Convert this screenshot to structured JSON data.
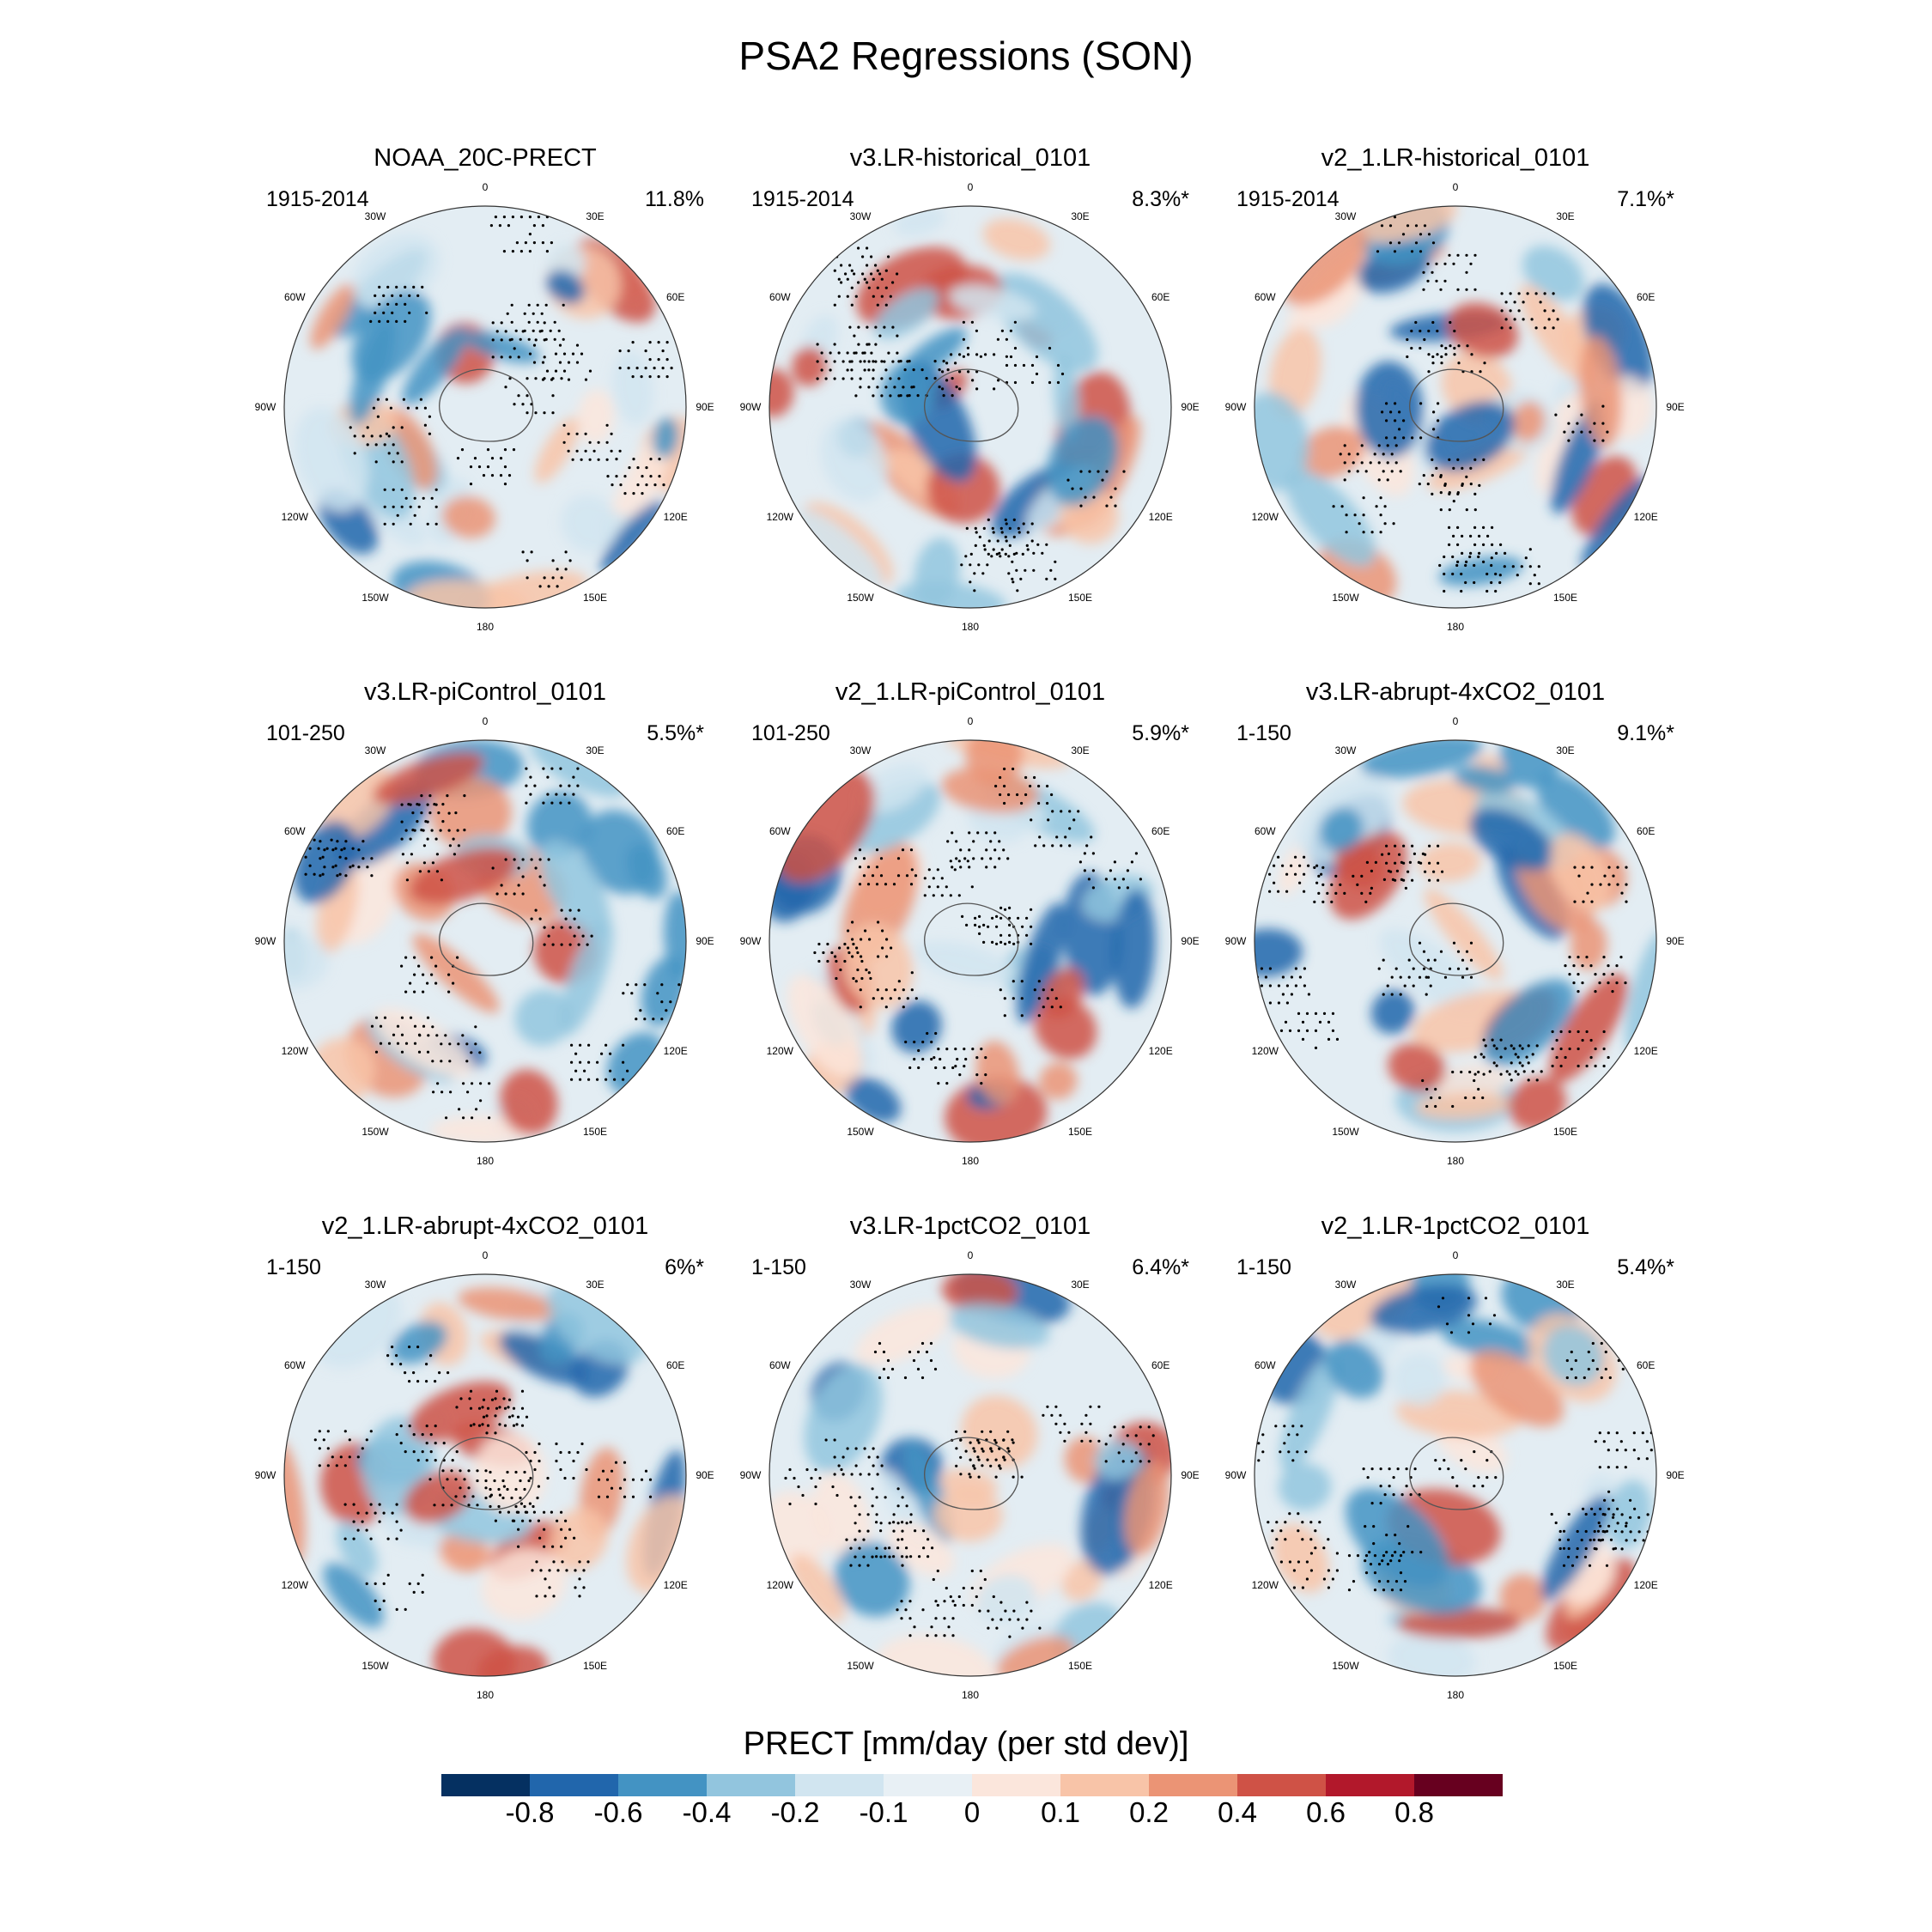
{
  "title": "PSA2 Regressions (SON)",
  "chart_data": {
    "type": "heatmap",
    "projection": "south-polar-stereographic",
    "variable": "PRECT",
    "colorbar": {
      "title": "PRECT [mm/day (per std dev)]",
      "levels": [
        "-0.8",
        "-0.6",
        "-0.4",
        "-0.2",
        "-0.1",
        "0",
        "0.1",
        "0.2",
        "0.4",
        "0.6",
        "0.8"
      ],
      "colors": [
        "#053061",
        "#2166ac",
        "#4393c3",
        "#92c5de",
        "#d1e5f0",
        "#e8f0f5",
        "#fbe6dc",
        "#f8c4a8",
        "#eb9475",
        "#cf5246",
        "#b2182b",
        "#67001f"
      ]
    },
    "longitude_labels": [
      "0",
      "30E",
      "60E",
      "90E",
      "120E",
      "150E",
      "180",
      "150W",
      "120W",
      "90W",
      "60W",
      "30W"
    ],
    "significance": "stippling",
    "panels": [
      {
        "title": "NOAA_20C-PRECT",
        "period": "1915-2014",
        "variance": "11.8%"
      },
      {
        "title": "v3.LR-historical_0101",
        "period": "1915-2014",
        "variance": "8.3%*"
      },
      {
        "title": "v2_1.LR-historical_0101",
        "period": "1915-2014",
        "variance": "7.1%*"
      },
      {
        "title": "v3.LR-piControl_0101",
        "period": "101-250",
        "variance": "5.5%*"
      },
      {
        "title": "v2_1.LR-piControl_0101",
        "period": "101-250",
        "variance": "5.9%*"
      },
      {
        "title": "v3.LR-abrupt-4xCO2_0101",
        "period": "1-150",
        "variance": "9.1%*"
      },
      {
        "title": "v2_1.LR-abrupt-4xCO2_0101",
        "period": "1-150",
        "variance": "6%*"
      },
      {
        "title": "v3.LR-1pctCO2_0101",
        "period": "1-150",
        "variance": "6.4%*"
      },
      {
        "title": "v2_1.LR-1pctCO2_0101",
        "period": "1-150",
        "variance": "5.4%*"
      }
    ]
  }
}
